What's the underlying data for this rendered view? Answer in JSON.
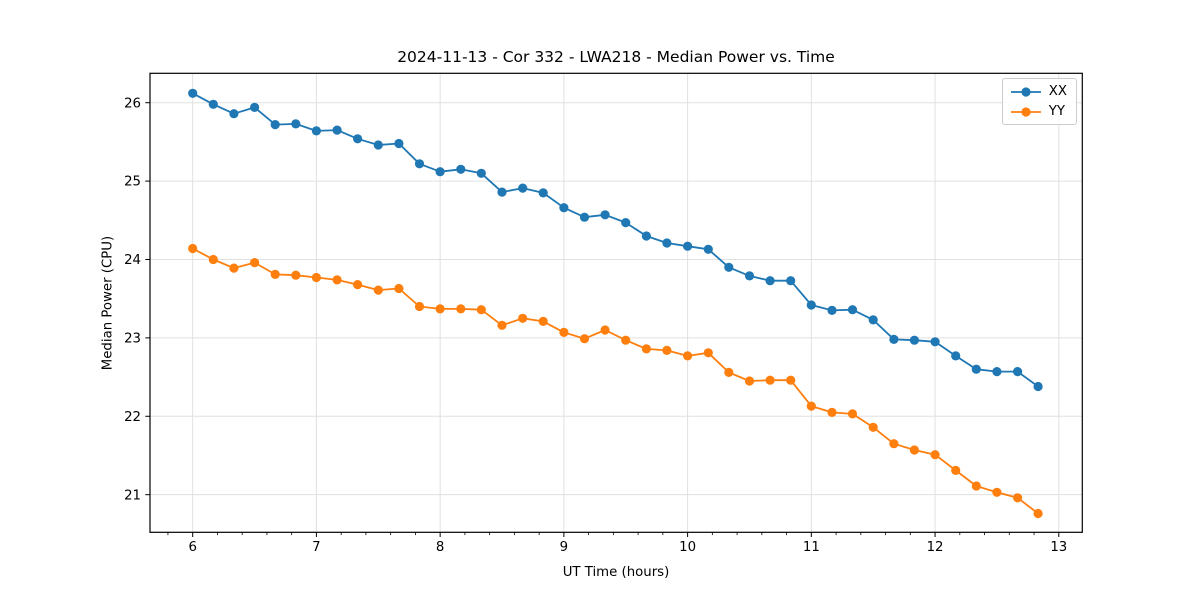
{
  "chart_data": {
    "type": "line",
    "title": "2024-11-13 - Cor 332 - LWA218 - Median Power vs. Time",
    "xlabel": "UT Time (hours)",
    "ylabel": "Median Power (CPU)",
    "xlim": [
      5.655,
      13.19
    ],
    "ylim": [
      20.52,
      26.375
    ],
    "xticks": [
      6,
      7,
      8,
      9,
      10,
      11,
      12,
      13
    ],
    "yticks": [
      21,
      22,
      23,
      24,
      25,
      26
    ],
    "x_minor_tick_step": 0.2,
    "grid": true,
    "grid_color": "#e0e0e0",
    "legend_position": "upper right",
    "marker": "circle",
    "x": [
      6.0,
      6.167,
      6.333,
      6.5,
      6.667,
      6.833,
      7.0,
      7.167,
      7.333,
      7.5,
      7.667,
      7.833,
      8.0,
      8.167,
      8.333,
      8.5,
      8.667,
      8.833,
      9.0,
      9.167,
      9.333,
      9.5,
      9.667,
      9.833,
      10.0,
      10.167,
      10.333,
      10.5,
      10.667,
      10.833,
      11.0,
      11.167,
      11.333,
      11.5,
      11.667,
      11.833,
      12.0,
      12.167,
      12.333,
      12.5,
      12.667,
      12.833
    ],
    "series": [
      {
        "name": "XX",
        "color": "#1f77b4",
        "values": [
          26.12,
          25.98,
          25.86,
          25.94,
          25.72,
          25.73,
          25.64,
          25.65,
          25.54,
          25.46,
          25.48,
          25.22,
          25.12,
          25.15,
          25.1,
          24.86,
          24.91,
          24.85,
          24.66,
          24.54,
          24.57,
          24.47,
          24.3,
          24.21,
          24.17,
          24.13,
          23.9,
          23.79,
          23.73,
          23.73,
          23.42,
          23.35,
          23.36,
          23.23,
          22.98,
          22.97,
          22.95,
          22.77,
          22.6,
          22.57,
          22.57,
          22.38
        ]
      },
      {
        "name": "YY",
        "color": "#ff7f0e",
        "values": [
          24.14,
          24.0,
          23.89,
          23.96,
          23.81,
          23.8,
          23.77,
          23.74,
          23.68,
          23.61,
          23.63,
          23.4,
          23.37,
          23.37,
          23.36,
          23.16,
          23.25,
          23.21,
          23.07,
          22.99,
          23.1,
          22.97,
          22.86,
          22.84,
          22.77,
          22.81,
          22.56,
          22.45,
          22.46,
          22.46,
          22.13,
          22.05,
          22.03,
          21.86,
          21.65,
          21.57,
          21.51,
          21.31,
          21.11,
          21.03,
          20.96,
          20.76
        ]
      }
    ]
  }
}
